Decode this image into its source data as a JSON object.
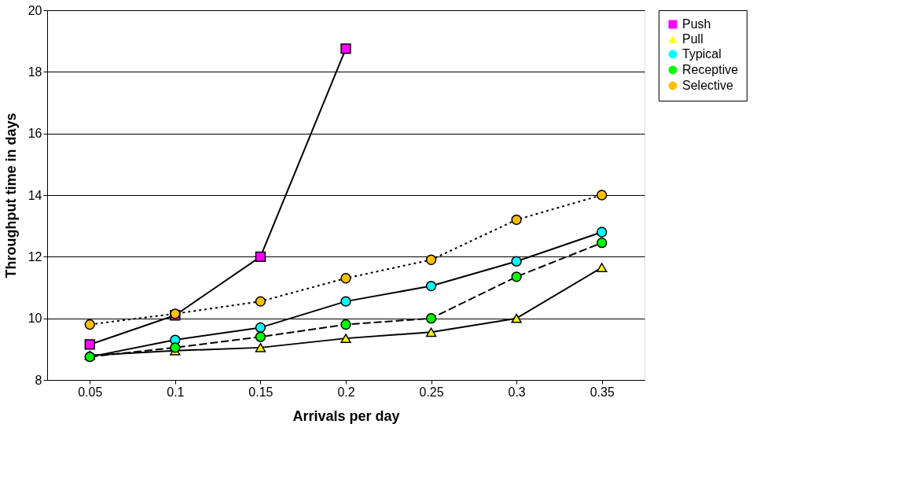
{
  "chart_data": {
    "type": "line",
    "xlabel": "Arrivals per day",
    "ylabel": "Throughput time in days",
    "categories": [
      "0.05",
      "0.1",
      "0.15",
      "0.2",
      "0.25",
      "0.3",
      "0.35"
    ],
    "ylim": [
      8,
      20
    ],
    "yticks": [
      8,
      10,
      12,
      14,
      16,
      18,
      20
    ],
    "grid": "y",
    "legend": "right",
    "series": [
      {
        "name": "Push",
        "color": "#ff00ff",
        "marker": "square",
        "line_style": "solid",
        "values": [
          9.15,
          10.1,
          12.0,
          18.75,
          null,
          null,
          null
        ]
      },
      {
        "name": "Pull",
        "color": "#ffff00",
        "marker": "triangle",
        "line_style": "solid",
        "values": [
          8.8,
          8.95,
          9.05,
          9.35,
          9.55,
          10.0,
          11.65
        ]
      },
      {
        "name": "Typical",
        "color": "#00ffff",
        "marker": "circle",
        "line_style": "solid",
        "values": [
          8.75,
          9.3,
          9.7,
          10.55,
          11.05,
          11.85,
          12.8
        ]
      },
      {
        "name": "Receptive",
        "color": "#00ff00",
        "marker": "circle",
        "line_style": "dashed",
        "values": [
          8.75,
          9.05,
          9.4,
          9.8,
          10.0,
          11.35,
          12.45
        ]
      },
      {
        "name": "Selective",
        "color": "#ffc000",
        "marker": "circle",
        "line_style": "dotted",
        "values": [
          9.8,
          10.15,
          10.55,
          11.3,
          11.9,
          13.2,
          14.0
        ]
      }
    ]
  }
}
